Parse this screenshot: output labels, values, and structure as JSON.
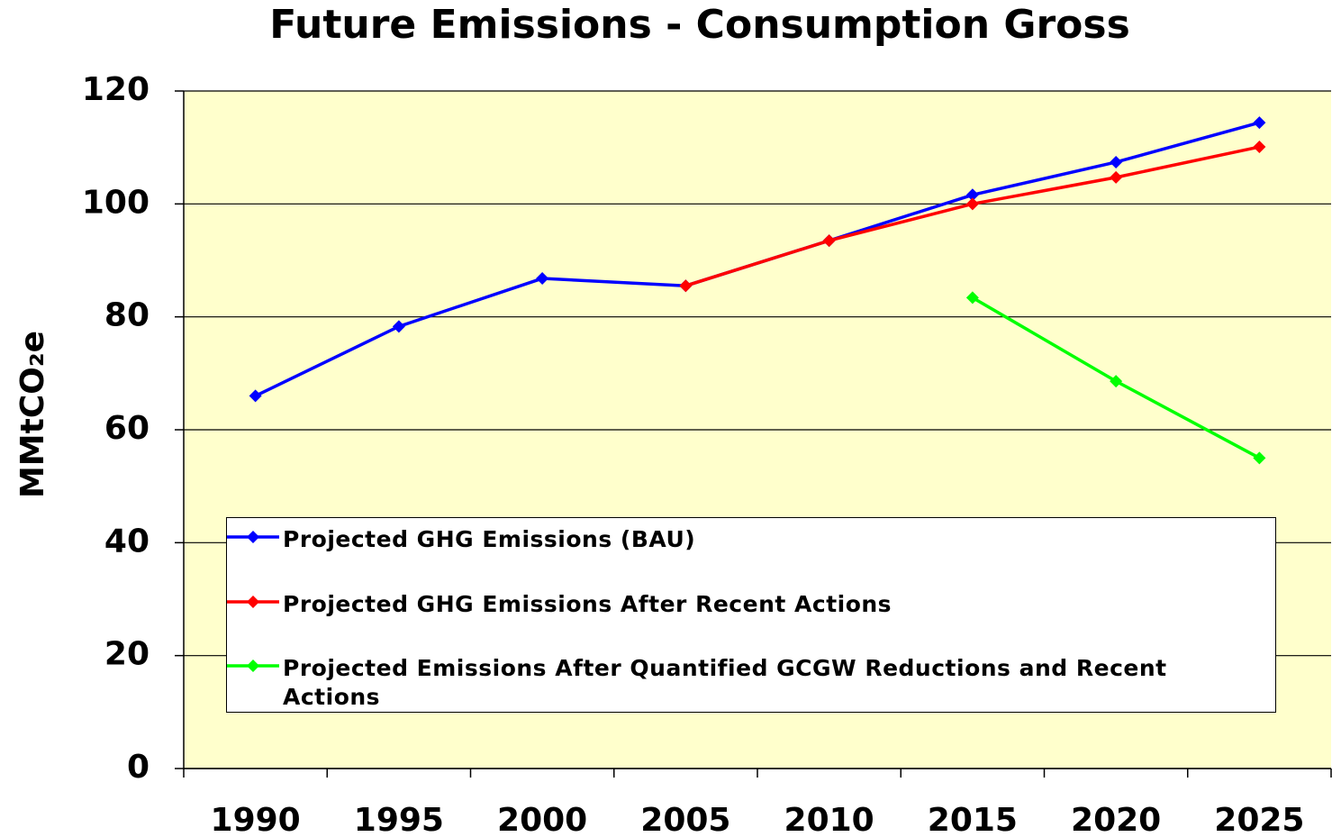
{
  "chart_data": {
    "type": "line",
    "title": "Future Emissions - Consumption Gross",
    "y_label": "MMtCO₂e",
    "categories": [
      "1990",
      "1995",
      "2000",
      "2005",
      "2010",
      "2015",
      "2020",
      "2025"
    ],
    "series": [
      {
        "name": "Projected GHG Emissions (BAU)",
        "color": "#0000ff",
        "values": [
          66,
          78.3,
          86.8,
          85.5,
          93.5,
          101.6,
          107.4,
          114.4
        ]
      },
      {
        "name": "Projected GHG Emissions After Recent Actions",
        "color": "#ff0000",
        "values": [
          null,
          null,
          null,
          85.5,
          93.5,
          100,
          104.7,
          110.1
        ]
      },
      {
        "name": "Projected Emissions After Quantified GCGW Reductions and Recent Actions",
        "color": "#00ff00",
        "values": [
          null,
          null,
          null,
          null,
          null,
          83.4,
          68.6,
          55
        ]
      }
    ],
    "ylim": [
      0,
      120
    ],
    "yticks": [
      0,
      20,
      40,
      60,
      80,
      100,
      120
    ],
    "grid": true,
    "plot_background": "#ffffcc"
  }
}
